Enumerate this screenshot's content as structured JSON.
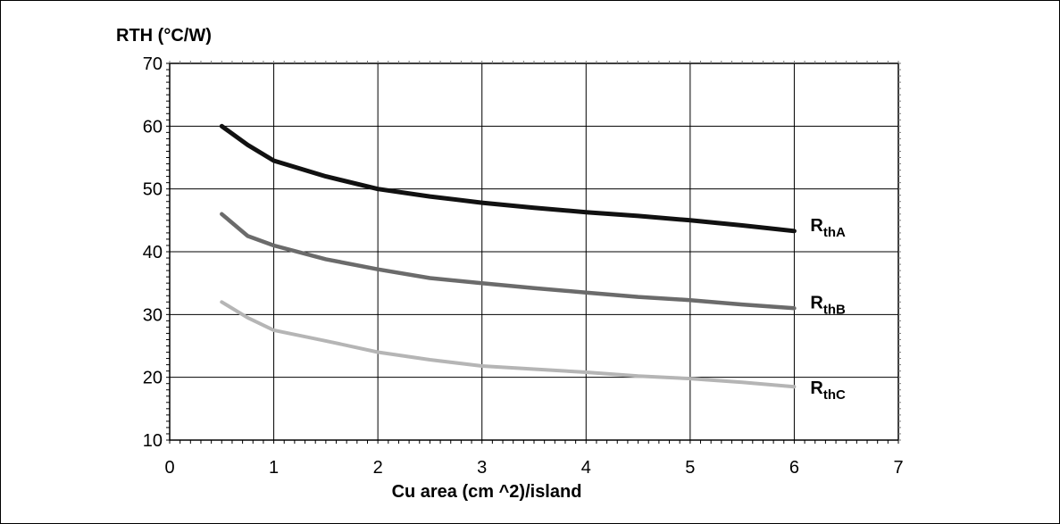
{
  "chart_data": {
    "type": "line",
    "title": "",
    "xlabel": "Cu area (cm ^2)/island",
    "ylabel": "RTH (°C/W)",
    "xlim": [
      0,
      7
    ],
    "ylim": [
      10,
      70
    ],
    "x_ticks": [
      "0",
      "1",
      "2",
      "3",
      "4",
      "5",
      "6",
      "7"
    ],
    "y_ticks": [
      "10",
      "20",
      "30",
      "40",
      "50",
      "60",
      "70"
    ],
    "grid": true,
    "series": [
      {
        "label_main": "R",
        "label_sub": "thA",
        "color": "#111111",
        "x": [
          0.5,
          0.75,
          1,
          1.5,
          2,
          2.5,
          3,
          3.5,
          4,
          4.5,
          5,
          5.5,
          6
        ],
        "y": [
          60,
          57,
          54.5,
          52,
          50,
          48.8,
          47.8,
          47,
          46.3,
          45.7,
          45,
          44.2,
          43.3
        ]
      },
      {
        "label_main": "R",
        "label_sub": "thB",
        "color": "#6b6b6b",
        "x": [
          0.5,
          0.75,
          1,
          1.5,
          2,
          2.5,
          3,
          3.5,
          4,
          4.5,
          5,
          5.5,
          6
        ],
        "y": [
          46,
          42.5,
          41,
          38.8,
          37.2,
          35.8,
          35,
          34.2,
          33.5,
          32.8,
          32.3,
          31.6,
          31
        ]
      },
      {
        "label_main": "R",
        "label_sub": "thC",
        "color": "#b5b5b5",
        "x": [
          0.5,
          0.75,
          1,
          1.5,
          2,
          2.5,
          3,
          3.5,
          4,
          4.5,
          5,
          5.5,
          6
        ],
        "y": [
          32,
          29.5,
          27.5,
          25.8,
          24,
          22.8,
          21.8,
          21.3,
          20.8,
          20.2,
          19.8,
          19.2,
          18.5
        ]
      }
    ],
    "legend_placement": "right of line ends"
  }
}
